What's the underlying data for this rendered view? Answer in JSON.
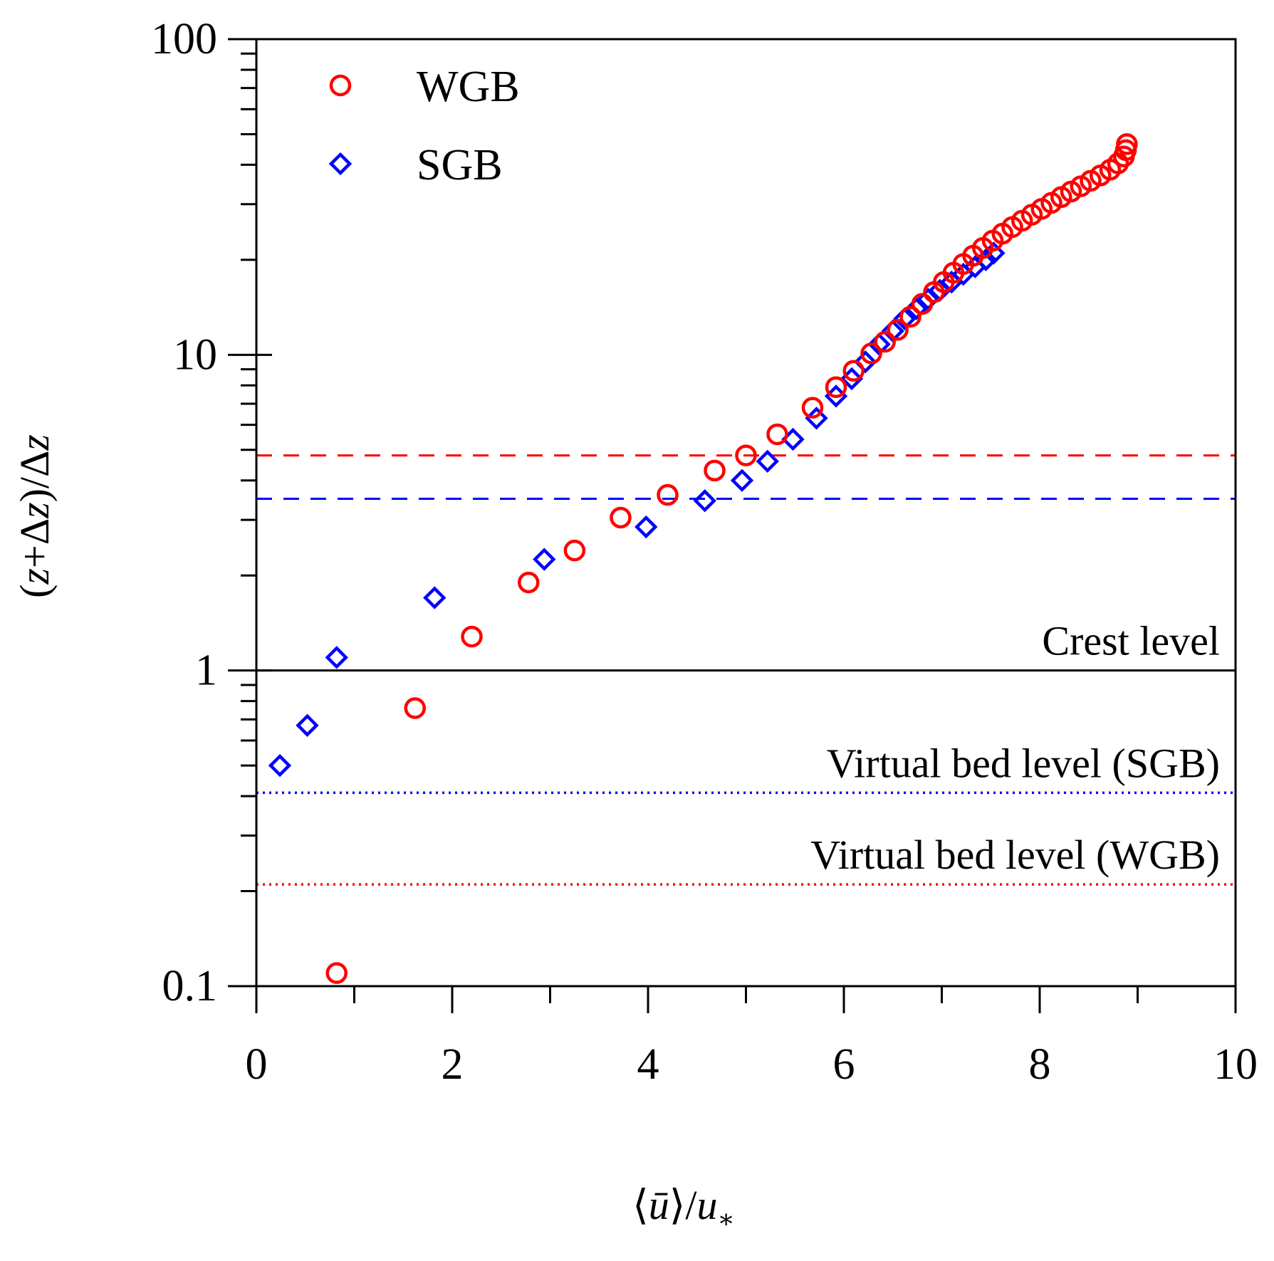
{
  "chart_data": {
    "type": "scatter",
    "x_scale": "linear",
    "y_scale": "log",
    "xlim": [
      0,
      10
    ],
    "ylim": [
      0.1,
      100
    ],
    "x_ticks": [
      0,
      2,
      4,
      6,
      8,
      10
    ],
    "x_tick_labels": [
      "0",
      "2",
      "4",
      "6",
      "8",
      "10"
    ],
    "y_ticks": [
      0.1,
      1,
      10,
      100
    ],
    "y_tick_labels": [
      "0.1",
      "1",
      "10",
      "100"
    ],
    "x_minor_step": 1,
    "grid": false,
    "legend_position": "top-left",
    "series": [
      {
        "name": "WGB",
        "marker": "circle",
        "color": "#ff0000",
        "points": [
          [
            0.82,
            0.11
          ],
          [
            1.62,
            0.76
          ],
          [
            2.2,
            1.28
          ],
          [
            2.78,
            1.9
          ],
          [
            3.25,
            2.4
          ],
          [
            3.72,
            3.05
          ],
          [
            4.2,
            3.6
          ],
          [
            4.68,
            4.3
          ],
          [
            5.0,
            4.8
          ],
          [
            5.32,
            5.6
          ],
          [
            5.68,
            6.8
          ],
          [
            5.92,
            7.9
          ],
          [
            6.1,
            8.9
          ],
          [
            6.28,
            10.1
          ],
          [
            6.42,
            11.0
          ],
          [
            6.55,
            12.0
          ],
          [
            6.68,
            13.2
          ],
          [
            6.8,
            14.5
          ],
          [
            6.92,
            15.8
          ],
          [
            7.02,
            17.0
          ],
          [
            7.12,
            18.2
          ],
          [
            7.22,
            19.4
          ],
          [
            7.32,
            20.6
          ],
          [
            7.42,
            21.8
          ],
          [
            7.52,
            23.0
          ],
          [
            7.62,
            24.2
          ],
          [
            7.72,
            25.4
          ],
          [
            7.82,
            26.6
          ],
          [
            7.92,
            27.8
          ],
          [
            8.02,
            29.0
          ],
          [
            8.12,
            30.3
          ],
          [
            8.22,
            31.6
          ],
          [
            8.32,
            32.9
          ],
          [
            8.42,
            34.2
          ],
          [
            8.52,
            35.6
          ],
          [
            8.62,
            37.0
          ],
          [
            8.72,
            38.6
          ],
          [
            8.8,
            40.4
          ],
          [
            8.86,
            42.5
          ],
          [
            8.88,
            44.5
          ],
          [
            8.89,
            46.5
          ]
        ]
      },
      {
        "name": "SGB",
        "marker": "diamond",
        "color": "#0000ff",
        "points": [
          [
            0.24,
            0.5
          ],
          [
            0.52,
            0.67
          ],
          [
            0.82,
            1.1
          ],
          [
            1.82,
            1.7
          ],
          [
            2.94,
            2.25
          ],
          [
            3.98,
            2.85
          ],
          [
            4.58,
            3.45
          ],
          [
            4.96,
            4.0
          ],
          [
            5.22,
            4.6
          ],
          [
            5.48,
            5.4
          ],
          [
            5.72,
            6.3
          ],
          [
            5.92,
            7.4
          ],
          [
            6.08,
            8.4
          ],
          [
            6.22,
            9.5
          ],
          [
            6.36,
            10.8
          ],
          [
            6.5,
            11.9
          ],
          [
            6.62,
            13.0
          ],
          [
            6.74,
            14.0
          ],
          [
            6.86,
            15.0
          ],
          [
            6.98,
            16.0
          ],
          [
            7.1,
            17.0
          ],
          [
            7.22,
            18.0
          ],
          [
            7.34,
            19.0
          ],
          [
            7.45,
            20.0
          ],
          [
            7.53,
            21.0
          ]
        ]
      }
    ],
    "reference_lines": [
      {
        "y": 4.8,
        "style": "dashed",
        "color": "#ff0000",
        "label": ""
      },
      {
        "y": 3.5,
        "style": "dashed",
        "color": "#0000ff",
        "label": ""
      },
      {
        "y": 1.0,
        "style": "solid",
        "color": "#000000",
        "label": "Crest level"
      },
      {
        "y": 0.41,
        "style": "dotted",
        "color": "#0000ff",
        "label": "Virtual bed level (SGB)"
      },
      {
        "y": 0.21,
        "style": "dotted",
        "color": "#ff0000",
        "label": "Virtual bed level (WGB)"
      }
    ],
    "legend": {
      "entries": [
        {
          "label": "WGB",
          "marker": "circle",
          "color": "#ff0000"
        },
        {
          "label": "SGB",
          "marker": "diamond",
          "color": "#0000ff"
        }
      ]
    }
  }
}
